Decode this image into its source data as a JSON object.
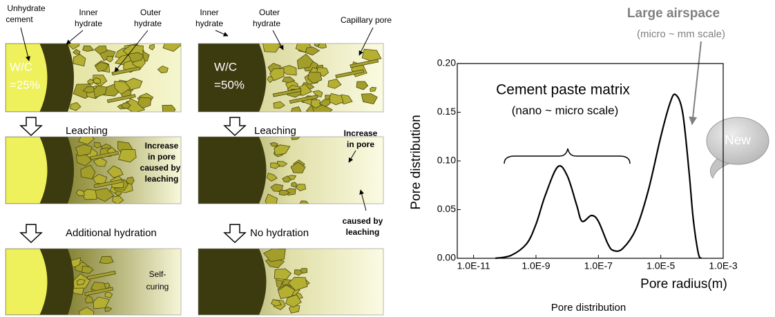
{
  "diagram": {
    "left_column": {
      "unhydrate_cement": [
        "Unhydrate",
        "cement"
      ],
      "inner_hydrate": [
        "Inner",
        "hydrate"
      ],
      "outer_hydrate": [
        "Outer",
        "hydrate"
      ],
      "wc": [
        "W/C",
        "=25%"
      ],
      "step1": "Leaching",
      "note1": [
        "Increase",
        "in pore",
        "caused by",
        "leaching"
      ],
      "step2": "Additional hydration",
      "note2": [
        "Self-",
        "curing"
      ]
    },
    "right_column": {
      "inner_hydrate": [
        "Inner",
        "hydrate"
      ],
      "outer_hydrate": [
        "Outer",
        "hydrate"
      ],
      "capillary_pore": "Capillary pore",
      "wc": [
        "W/C",
        "=50%"
      ],
      "step1": "Leaching",
      "note1_top": [
        "Increase",
        "in pore"
      ],
      "note1_bottom": [
        "caused by",
        "leaching"
      ],
      "step2": "No hydration"
    }
  },
  "chart_data": {
    "type": "line",
    "log_x": true,
    "xlabel": "Pore radius(m)",
    "ylabel": "Pore distribution",
    "caption": "Pore distribution",
    "annotations": {
      "large_airspace": "Large airspace",
      "large_airspace_scale": "(micro ~ mm scale)",
      "matrix": "Cement paste matrix",
      "matrix_scale": "(nano ~ micro scale)",
      "new": "New"
    },
    "xlim": [
      3e-12,
      0.001
    ],
    "xticks": [
      {
        "value": 1e-11,
        "label": "1.0E-11"
      },
      {
        "value": 1e-09,
        "label": "1.0E-9"
      },
      {
        "value": 1e-07,
        "label": "1.0E-7"
      },
      {
        "value": 1e-05,
        "label": "1.0E-5"
      },
      {
        "value": 0.001,
        "label": "1.0E-3"
      }
    ],
    "ylim": [
      0,
      0.2
    ],
    "yticks": [
      {
        "value": 0,
        "label": "0.00"
      },
      {
        "value": 0.05,
        "label": "0.05"
      },
      {
        "value": 0.1,
        "label": "0.10"
      },
      {
        "value": 0.15,
        "label": "0.15"
      },
      {
        "value": 0.2,
        "label": "0.20"
      }
    ],
    "x": [
      5e-11,
      1.6e-10,
      5e-10,
      1e-09,
      2e-09,
      5e-09,
      1e-08,
      2e-08,
      3e-08,
      6e-08,
      1e-07,
      2e-07,
      3e-07,
      6e-07,
      1.6e-06,
      4e-06,
      1e-05,
      2e-05,
      3e-05,
      5e-05,
      8e-05,
      0.00011,
      0.00016,
      0.0002
    ],
    "series": [
      {
        "color": "#000000",
        "values": [
          0,
          0.003,
          0.015,
          0.035,
          0.065,
          0.094,
          0.085,
          0.055,
          0.038,
          0.044,
          0.038,
          0.015,
          0.008,
          0.01,
          0.03,
          0.07,
          0.125,
          0.16,
          0.168,
          0.15,
          0.09,
          0.04,
          0.005,
          0
        ]
      }
    ]
  }
}
